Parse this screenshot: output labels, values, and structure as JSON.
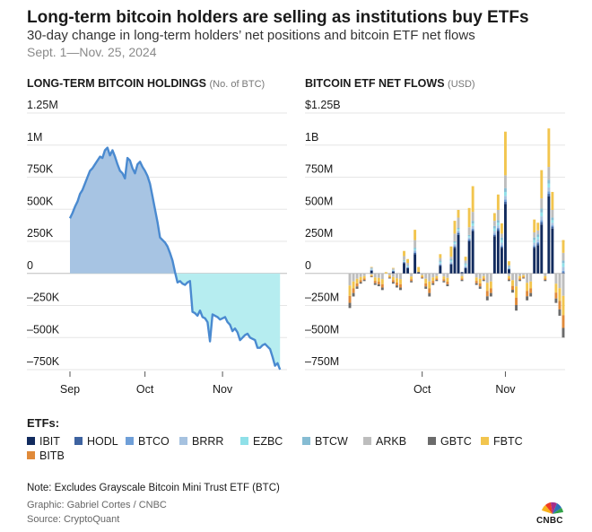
{
  "title": "Long-term bitcoin holders are selling as institutions buy ETFs",
  "subtitle": "30-day change in long-term holders’ net positions and bitcoin ETF net flows",
  "date_range": "Sept. 1—Nov. 25, 2024",
  "colors": {
    "positive_fill": "#a7c4e3",
    "negative_fill": "#b6edf0",
    "line": "#4a8ad0",
    "grid": "#e6e6e6",
    "zero": "#bdbdbd"
  },
  "chart_data": [
    {
      "type": "area",
      "title": "LONG-TERM BITCOIN HOLDINGS",
      "unit": "(No. of BTC)",
      "ylim": [
        -750000,
        1250000
      ],
      "yticks": [
        1250000,
        1000000,
        750000,
        500000,
        250000,
        0,
        -250000,
        -500000,
        -750000
      ],
      "ytick_labels": [
        "1.25M",
        "1M",
        "750K",
        "500K",
        "250K",
        "0",
        "–250K",
        "–500K",
        "–750K"
      ],
      "x_ticks": [
        {
          "day": 0,
          "label": "Sep"
        },
        {
          "day": 30,
          "label": "Oct"
        },
        {
          "day": 61,
          "label": "Nov"
        }
      ],
      "x_range": [
        0,
        85
      ],
      "series": [
        {
          "name": "Long-term holders 30-day net position change",
          "x": [
            0,
            1,
            2,
            3,
            4,
            5,
            6,
            7,
            8,
            9,
            10,
            11,
            12,
            13,
            14,
            15,
            16,
            17,
            18,
            19,
            20,
            21,
            22,
            23,
            24,
            25,
            26,
            27,
            28,
            29,
            30,
            31,
            32,
            33,
            34,
            35,
            36,
            37,
            38,
            39,
            40,
            41,
            42,
            43,
            44,
            45,
            46,
            47,
            48,
            49,
            50,
            51,
            52,
            53,
            54,
            55,
            56,
            57,
            58,
            59,
            60,
            61,
            62,
            63,
            64,
            65,
            66,
            67,
            68,
            69,
            70,
            71,
            72,
            73,
            74,
            75,
            76,
            77,
            78,
            79,
            80,
            81,
            82,
            83,
            84
          ],
          "values": [
            430000,
            470000,
            520000,
            560000,
            620000,
            650000,
            700000,
            750000,
            800000,
            820000,
            850000,
            880000,
            910000,
            900000,
            960000,
            980000,
            920000,
            960000,
            910000,
            850000,
            800000,
            780000,
            740000,
            900000,
            880000,
            820000,
            780000,
            850000,
            870000,
            830000,
            800000,
            760000,
            700000,
            600000,
            500000,
            400000,
            280000,
            260000,
            240000,
            210000,
            160000,
            100000,
            10000,
            -70000,
            -60000,
            -80000,
            -90000,
            -70000,
            -60000,
            -300000,
            -310000,
            -330000,
            -290000,
            -340000,
            -350000,
            -380000,
            -530000,
            -320000,
            -330000,
            -340000,
            -360000,
            -350000,
            -340000,
            -380000,
            -400000,
            -450000,
            -430000,
            -460000,
            -520000,
            -500000,
            -480000,
            -470000,
            -500000,
            -510000,
            -520000,
            -580000,
            -580000,
            -560000,
            -550000,
            -570000,
            -590000,
            -650000,
            -720000,
            -700000,
            -750000
          ]
        }
      ]
    },
    {
      "type": "bar",
      "stacked": true,
      "title": "BITCOIN ETF NET FLOWS",
      "unit": "(USD)",
      "ylim": [
        -750,
        1250
      ],
      "y_units": "USD millions",
      "yticks": [
        1250,
        1000,
        750,
        500,
        250,
        0,
        -250,
        -500,
        -750
      ],
      "ytick_labels": [
        "$1.25B",
        "1B",
        "750M",
        "500M",
        "250M",
        "0",
        "–250M",
        "–500M",
        "–750M"
      ],
      "x_ticks": [
        {
          "bar": 20,
          "label": "Oct"
        },
        {
          "bar": 43,
          "label": "Nov"
        }
      ],
      "categories_count": 60,
      "series": [
        {
          "name": "IBIT",
          "values": [
            0,
            0,
            0,
            0,
            0,
            0,
            20,
            0,
            0,
            0,
            0,
            0,
            15,
            0,
            0,
            80,
            40,
            0,
            150,
            10,
            0,
            0,
            0,
            0,
            0,
            60,
            0,
            0,
            70,
            200,
            300,
            10,
            40,
            250,
            330,
            0,
            0,
            0,
            0,
            0,
            290,
            330,
            200,
            540,
            30,
            0,
            0,
            0,
            0,
            0,
            0,
            200,
            220,
            380,
            0,
            600,
            350,
            0,
            0,
            0
          ]
        },
        {
          "name": "HODL",
          "values": [
            0,
            0,
            0,
            0,
            0,
            0,
            5,
            0,
            0,
            0,
            0,
            0,
            2,
            0,
            0,
            5,
            5,
            0,
            10,
            0,
            0,
            0,
            0,
            0,
            0,
            5,
            0,
            0,
            5,
            10,
            15,
            0,
            5,
            10,
            10,
            0,
            0,
            0,
            0,
            0,
            10,
            15,
            10,
            20,
            5,
            0,
            0,
            0,
            0,
            0,
            0,
            10,
            15,
            20,
            0,
            20,
            15,
            0,
            0,
            10
          ]
        },
        {
          "name": "BTCO",
          "values": [
            0,
            0,
            0,
            0,
            0,
            0,
            2,
            0,
            0,
            0,
            0,
            0,
            2,
            0,
            0,
            5,
            2,
            0,
            10,
            0,
            0,
            0,
            0,
            0,
            0,
            5,
            0,
            0,
            5,
            10,
            10,
            0,
            5,
            10,
            10,
            0,
            0,
            0,
            0,
            0,
            10,
            10,
            10,
            15,
            5,
            0,
            0,
            0,
            0,
            0,
            0,
            10,
            10,
            15,
            0,
            20,
            10,
            0,
            0,
            10
          ]
        },
        {
          "name": "BRRR",
          "values": [
            0,
            0,
            0,
            0,
            0,
            0,
            5,
            0,
            0,
            0,
            0,
            0,
            3,
            0,
            0,
            5,
            5,
            0,
            10,
            0,
            0,
            0,
            0,
            0,
            0,
            10,
            0,
            0,
            10,
            10,
            10,
            0,
            10,
            10,
            20,
            0,
            0,
            0,
            0,
            0,
            20,
            20,
            20,
            30,
            5,
            0,
            0,
            0,
            0,
            0,
            0,
            20,
            20,
            30,
            0,
            30,
            20,
            0,
            0,
            30
          ]
        },
        {
          "name": "EZBC",
          "values": [
            0,
            0,
            0,
            0,
            0,
            0,
            3,
            0,
            0,
            0,
            0,
            0,
            3,
            0,
            0,
            5,
            5,
            0,
            10,
            0,
            0,
            0,
            0,
            0,
            0,
            10,
            0,
            0,
            10,
            10,
            10,
            0,
            10,
            10,
            20,
            0,
            0,
            0,
            0,
            0,
            20,
            20,
            20,
            30,
            5,
            0,
            0,
            0,
            0,
            0,
            0,
            20,
            20,
            30,
            0,
            30,
            20,
            0,
            0,
            30
          ]
        },
        {
          "name": "BTCW",
          "values": [
            0,
            0,
            0,
            0,
            0,
            0,
            3,
            0,
            0,
            0,
            0,
            0,
            3,
            0,
            0,
            5,
            5,
            0,
            10,
            0,
            0,
            0,
            0,
            0,
            0,
            10,
            0,
            0,
            10,
            10,
            10,
            0,
            10,
            10,
            20,
            0,
            0,
            0,
            0,
            0,
            20,
            20,
            20,
            30,
            5,
            0,
            0,
            0,
            0,
            0,
            0,
            20,
            20,
            30,
            0,
            30,
            20,
            0,
            0,
            20
          ]
        },
        {
          "name": "ARKB",
          "values": [
            0,
            0,
            0,
            0,
            0,
            0,
            10,
            0,
            0,
            0,
            0,
            0,
            10,
            0,
            0,
            30,
            20,
            0,
            60,
            0,
            0,
            0,
            0,
            0,
            0,
            20,
            0,
            0,
            20,
            60,
            80,
            0,
            20,
            60,
            70,
            0,
            0,
            0,
            0,
            0,
            40,
            80,
            30,
            100,
            10,
            0,
            0,
            0,
            0,
            0,
            0,
            40,
            30,
            80,
            0,
            100,
            60,
            0,
            0,
            60
          ]
        },
        {
          "name": "GBTC",
          "values": [
            0,
            0,
            0,
            0,
            0,
            0,
            0,
            0,
            0,
            0,
            0,
            0,
            0,
            0,
            0,
            0,
            0,
            0,
            0,
            0,
            0,
            0,
            0,
            0,
            0,
            0,
            0,
            0,
            0,
            0,
            0,
            0,
            0,
            0,
            0,
            0,
            0,
            0,
            0,
            0,
            0,
            0,
            0,
            0,
            0,
            0,
            0,
            0,
            0,
            0,
            0,
            0,
            0,
            0,
            0,
            0,
            0,
            0,
            0,
            0
          ]
        },
        {
          "name": "FBTC",
          "values": [
            0,
            0,
            0,
            0,
            0,
            0,
            2,
            0,
            0,
            0,
            10,
            0,
            5,
            0,
            0,
            40,
            30,
            0,
            80,
            40,
            0,
            0,
            0,
            0,
            0,
            30,
            0,
            0,
            80,
            100,
            60,
            0,
            30,
            150,
            200,
            0,
            0,
            0,
            0,
            0,
            60,
            120,
            80,
            340,
            30,
            0,
            0,
            0,
            0,
            0,
            0,
            100,
            60,
            220,
            0,
            300,
            140,
            0,
            0,
            100
          ]
        },
        {
          "name": "BITB",
          "values": [
            0,
            0,
            0,
            0,
            0,
            0,
            0,
            0,
            0,
            0,
            0,
            0,
            0,
            0,
            0,
            0,
            0,
            0,
            0,
            0,
            0,
            0,
            0,
            0,
            0,
            0,
            0,
            0,
            0,
            0,
            0,
            0,
            0,
            0,
            0,
            0,
            0,
            0,
            0,
            0,
            0,
            0,
            0,
            0,
            0,
            0,
            0,
            0,
            0,
            0,
            0,
            0,
            0,
            0,
            0,
            0,
            0,
            0,
            0,
            0
          ]
        }
      ],
      "negative_totals": [
        -270,
        -180,
        -120,
        -80,
        -60,
        0,
        -30,
        -90,
        -100,
        -130,
        0,
        -40,
        -80,
        -110,
        -130,
        0,
        0,
        -70,
        0,
        0,
        -40,
        -120,
        -180,
        -90,
        -60,
        0,
        -70,
        -100,
        0,
        0,
        0,
        -60,
        0,
        0,
        0,
        -90,
        -120,
        -60,
        -210,
        -180,
        0,
        0,
        0,
        0,
        -60,
        -150,
        -290,
        -60,
        -40,
        -210,
        -180,
        0,
        0,
        0,
        -60,
        0,
        0,
        -230,
        -330,
        -500
      ]
    }
  ],
  "legend": {
    "title": "ETFs:",
    "items": [
      {
        "label": "IBIT",
        "color": "#122b5e"
      },
      {
        "label": "HODL",
        "color": "#3e63a0"
      },
      {
        "label": "BTCO",
        "color": "#6f9fd8"
      },
      {
        "label": "BRRR",
        "color": "#a6c2e0"
      },
      {
        "label": "EZBC",
        "color": "#8fe0e8"
      },
      {
        "label": "BTCW",
        "color": "#86bcd3"
      },
      {
        "label": "ARKB",
        "color": "#bdbdbd"
      },
      {
        "label": "GBTC",
        "color": "#6b6b6b"
      },
      {
        "label": "FBTC",
        "color": "#f2c54e"
      },
      {
        "label": "BITB",
        "color": "#e08a3a"
      }
    ]
  },
  "note": "Note: Excludes Grayscale Bitcoin Mini Trust ETF (BTC)",
  "graphic_credit": "Graphic: Gabriel Cortes / CNBC",
  "source": "Source: CryptoQuant",
  "logo_text": "CNBC"
}
